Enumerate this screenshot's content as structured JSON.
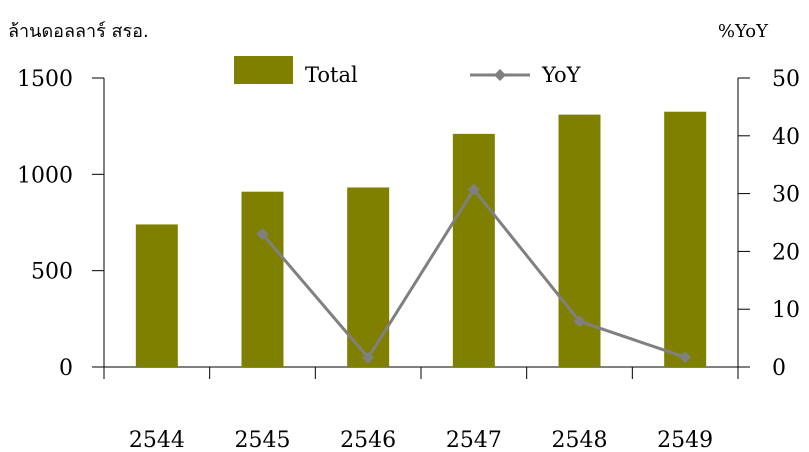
{
  "chart_data": {
    "type": "bar",
    "categories": [
      "2544",
      "2545",
      "2546",
      "2547",
      "2548",
      "2549"
    ],
    "series": [
      {
        "name": "Total",
        "type": "bar",
        "axis": "left",
        "color": "#808000",
        "values": [
          740,
          910,
          932,
          1210,
          1310,
          1325
        ]
      },
      {
        "name": "YoY",
        "type": "line",
        "axis": "right",
        "color": "#808080",
        "values": [
          null,
          23,
          1.6,
          30.7,
          7.9,
          1.7
        ]
      }
    ],
    "ylabel_left": "ล้านดอลลาร์ สรอ.",
    "ylabel_right": "%YoY",
    "ylim_left": [
      0,
      1500
    ],
    "ylim_right": [
      0,
      50
    ],
    "yticks_left": [
      "0",
      "500",
      "1000",
      "1500"
    ],
    "yticks_right": [
      "0",
      "10",
      "20",
      "30",
      "40",
      "50"
    ],
    "legend_position": "top",
    "grid": false
  }
}
